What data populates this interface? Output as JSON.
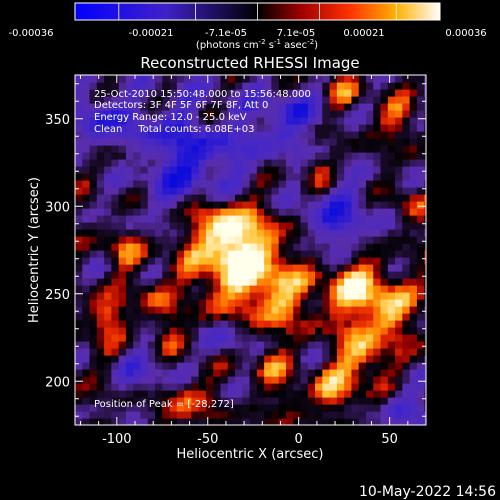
{
  "colorbar": {
    "ticks": [
      "-0.00036",
      "-0.00021",
      "-7.1e-05",
      "7.1e-05",
      "0.00021",
      "0.00036"
    ],
    "unit_prefix": "(photons cm",
    "unit_exp1": "-2",
    "unit_mid": " s",
    "unit_exp2": "-1",
    "unit_mid2": " asec",
    "unit_exp3": "-2",
    "unit_suffix": ")",
    "colormap": "red-temperature with blue-purple negatives"
  },
  "chart_data": {
    "type": "heatmap",
    "title": "Reconstructed RHESSI Image",
    "xlabel": "Heliocentric X (arcsec)",
    "ylabel": "Heliocentric Y (arcsec)",
    "xlim": [
      -123,
      70
    ],
    "ylim": [
      175,
      375
    ],
    "xticks": [
      -100,
      -50,
      0,
      50
    ],
    "yticks": [
      200,
      250,
      300,
      350
    ],
    "value_range": [
      -0.00036,
      0.00036
    ],
    "peak": [
      -28,
      272
    ],
    "grid": false
  },
  "annotations": {
    "line1": "25-Oct-2010 15:50:48.000 to 15:56:48.000",
    "line2": "Detectors: 3F 4F 5F 6F 7F 8F, Att 0",
    "line3": "Energy Range: 12.0 - 25.0 keV",
    "line4": "Clean     Total counts: 6.08E+03",
    "peak_label": "Position of Peak = [-28,272]"
  },
  "footer": {
    "date": "10-May-2022 14:56"
  }
}
